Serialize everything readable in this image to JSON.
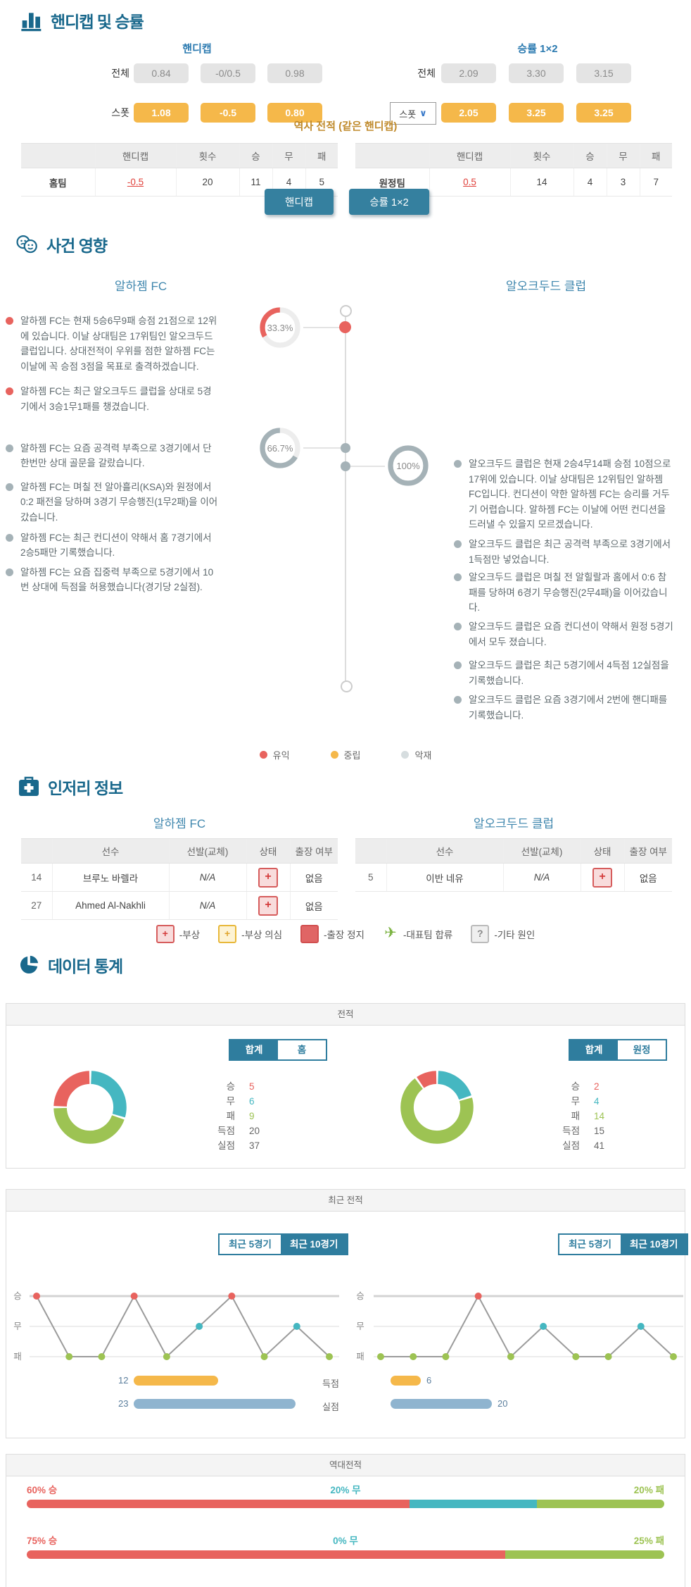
{
  "colors": {
    "red": "#e8635e",
    "teal": "#45b7c1",
    "green": "#9dc353",
    "orange": "#f5b84a",
    "blue": "#8fb4cf",
    "btnTeal": "#35809f",
    "headBlue": "#19688c",
    "dotGray": "#a5b2b7",
    "legendGray": "#d6dddf",
    "linkRed": "#e0403a"
  },
  "section1": {
    "title": "핸디캡 및 승률",
    "handicap": {
      "title": "핸디캡",
      "row1_label": "전체",
      "row1": [
        "0.84",
        "-0/0.5",
        "0.98"
      ],
      "row2_label": "스폿",
      "row2": [
        "1.08",
        "-0.5",
        "0.80"
      ]
    },
    "winrate": {
      "title": "승률 1×2",
      "row1_label": "전체",
      "row1": [
        "2.09",
        "3.30",
        "3.15"
      ],
      "row2_label": "스폿",
      "row2": [
        "2.05",
        "3.25",
        "3.25"
      ]
    },
    "history": {
      "title": "역사 전적 (같은 핸디캡)",
      "columns": [
        "핸디캡",
        "횟수",
        "승",
        "무",
        "패"
      ],
      "home": {
        "label": "홈팀",
        "handicap": "-0.5",
        "count": "20",
        "win": "11",
        "draw": "4",
        "loss": "5"
      },
      "away": {
        "label": "원정팀",
        "handicap": "0.5",
        "count": "14",
        "win": "4",
        "draw": "3",
        "loss": "7"
      }
    },
    "buttons": {
      "handicap": "핸디캡",
      "winrate": "승률 1×2"
    }
  },
  "section2": {
    "title": "사건 영향",
    "home_team": "알하젬 FC",
    "away_team": "알오크두드 클럽",
    "gauges": [
      {
        "label": "33.3%",
        "value": 33.3,
        "color": "red"
      },
      {
        "label": "66.7%",
        "value": 66.7,
        "color": "dotGray"
      },
      {
        "label": "100%",
        "value": 100,
        "color": "dotGray"
      }
    ],
    "home_bullets": [
      {
        "color": "red",
        "text": "알하젬 FC는 현재 5승6무9패 승점 21점으로 12위에 있습니다. 이날 상대팀은 17위팀인 알오크두드 클럽입니다. 상대전적이 우위를 점한 알하젬 FC는 이날에 꼭 승점 3점을 목표로 출격하겠습니다."
      },
      {
        "color": "red",
        "text": "알하젬 FC는 최근 알오크두드 클럽을 상대로 5경기에서 3승1무1패를 챙겼습니다."
      },
      {
        "color": "dotGray",
        "text": "알하젬 FC는 요즘 공격력 부족으로 3경기에서 단 한번만 상대 골문을 갈랐습니다."
      },
      {
        "color": "dotGray",
        "text": "알하젬 FC는 며칠 전 알아흘리(KSA)와 원정에서 0:2 패전을 당하며 3경기 무승행진(1무2패)을 이어갔습니다."
      },
      {
        "color": "dotGray",
        "text": "알하젬 FC는 최근 컨디션이 약해서 홈 7경기에서 2승5패만 기록했습니다."
      },
      {
        "color": "dotGray",
        "text": "알하젬 FC는 요즘 집중력 부족으로 5경기에서 10번 상대에 득점을 허용했습니다(경기당 2실점)."
      }
    ],
    "away_bullets": [
      {
        "color": "dotGray",
        "text": "알오크두드 클럽은 현재 2승4무14패 승점 10점으로 17위에 있습니다. 이날 상대팀은 12위팀인 알하젬 FC입니다. 컨디션이 약한 알하젬 FC는 승리를 거두기 어렵습니다. 알하젬 FC는 이날에 어떤 컨디션을 드러낼 수 있을지 모르겠습니다."
      },
      {
        "color": "dotGray",
        "text": "알오크두드 클럽은 최근 공격력 부족으로 3경기에서 1득점만 넣었습니다."
      },
      {
        "color": "dotGray",
        "text": "알오크두드 클럽은 며칠 전 알힐랄과 홈에서 0:6 참패를 당하며 6경기 무승행진(2무4패)을 이어갔습니다."
      },
      {
        "color": "dotGray",
        "text": "알오크두드 클럽은 요즘 컨디션이 약해서 원정 5경기에서 모두 졌습니다."
      },
      {
        "color": "dotGray",
        "text": "알오크두드 클럽은 최근 5경기에서 4득점 12실점을 기록했습니다."
      },
      {
        "color": "dotGray",
        "text": "알오크두드 클럽은 요즘 3경기에서 2번에 핸디패를 기록했습니다."
      }
    ],
    "legend": [
      {
        "label": "유익",
        "color": "red"
      },
      {
        "label": "중립",
        "color": "orange"
      },
      {
        "label": "악재",
        "color": "legendGray"
      }
    ]
  },
  "section3": {
    "title": "인저리 정보",
    "home_team": "알하젬 FC",
    "away_team": "알오크두드 클럽",
    "columns": [
      "선수",
      "선발(교체)",
      "상태",
      "출장 여부"
    ],
    "home_rows": [
      {
        "no": "14",
        "name": "브루노 바렐라",
        "start": "N/A",
        "absent": "없음"
      },
      {
        "no": "27",
        "name": "Ahmed Al-Nakhli",
        "start": "N/A",
        "absent": "없음"
      }
    ],
    "away_rows": [
      {
        "no": "5",
        "name": "이반 네유",
        "start": "N/A",
        "absent": "없음"
      }
    ],
    "legend": [
      {
        "label": "-부상"
      },
      {
        "label": "-부상 의심"
      },
      {
        "label": "-출장 정지"
      },
      {
        "label": "-대표팀 합류"
      },
      {
        "label": "-기타 원인"
      }
    ],
    "etc_mark": "?"
  },
  "section4": {
    "title": "데이터 통계",
    "record": {
      "panel_title": "전적",
      "row_labels": [
        "승",
        "무",
        "패",
        "득점",
        "실점"
      ],
      "home_tabs": [
        "합계",
        "홈"
      ],
      "away_tabs": [
        "합계",
        "원정"
      ],
      "home": {
        "win": 5,
        "draw": 6,
        "loss": 9,
        "gf": 20,
        "ga": 37
      },
      "away": {
        "win": 2,
        "draw": 4,
        "loss": 14,
        "gf": 15,
        "ga": 41
      },
      "home_donut": {
        "values": [
          6,
          9,
          5
        ],
        "colors": [
          "teal",
          "green",
          "red"
        ]
      },
      "away_donut": {
        "values": [
          4,
          14,
          2
        ],
        "colors": [
          "teal",
          "green",
          "red"
        ]
      }
    },
    "recent": {
      "panel_title": "최근 전적",
      "tabs": [
        "최근 5경기",
        "최근 10경기"
      ],
      "axis": [
        "승",
        "무",
        "패"
      ],
      "home_chart": {
        "results": [
          "승",
          "패",
          "패",
          "승",
          "패",
          "무",
          "승",
          "패",
          "무",
          "패"
        ],
        "dot_colors": {
          "승": "red",
          "무": "teal",
          "패": "green"
        }
      },
      "away_chart": {
        "results": [
          "패",
          "패",
          "패",
          "승",
          "패",
          "무",
          "패",
          "패",
          "무",
          "패"
        ],
        "dot_colors": {
          "승": "red",
          "무": "teal",
          "패": "green"
        }
      },
      "goals_label": "득점",
      "conceded_label": "실점",
      "home_goals": 12,
      "home_conceded": 23,
      "away_goals": 6,
      "away_conceded": 20
    },
    "h2h": {
      "panel_title": "역대전적",
      "rows": [
        {
          "win_label": "60% 승",
          "draw_label": "20% 무",
          "loss_label": "20% 패",
          "segments": [
            {
              "pct": 60,
              "color": "red"
            },
            {
              "pct": 20,
              "color": "teal"
            },
            {
              "pct": 20,
              "color": "green"
            }
          ]
        },
        {
          "win_label": "75% 승",
          "draw_label": "0% 무",
          "loss_label": "25% 패",
          "segments": [
            {
              "pct": 75,
              "color": "red"
            },
            {
              "pct": 0,
              "color": "teal"
            },
            {
              "pct": 25,
              "color": "green"
            }
          ]
        }
      ]
    }
  },
  "chart_data": [
    {
      "type": "pie",
      "title": "전적 - 알하젬 FC (합계)",
      "labels": [
        "무",
        "패",
        "승"
      ],
      "values": [
        6,
        9,
        5
      ],
      "extra": {
        "득점": 20,
        "실점": 37
      },
      "legend_position": "right"
    },
    {
      "type": "pie",
      "title": "전적 - 알오크두드 클럽 (합계)",
      "labels": [
        "무",
        "패",
        "승"
      ],
      "values": [
        4,
        14,
        2
      ],
      "extra": {
        "득점": 15,
        "실점": 41
      },
      "legend_position": "right"
    },
    {
      "type": "line",
      "title": "최근 전적 - 알하젬 FC (최근 10경기)",
      "x": [
        1,
        2,
        3,
        4,
        5,
        6,
        7,
        8,
        9,
        10
      ],
      "values": [
        "승",
        "패",
        "패",
        "승",
        "패",
        "무",
        "승",
        "패",
        "무",
        "패"
      ],
      "ylabels": [
        "승",
        "무",
        "패"
      ],
      "grid": true
    },
    {
      "type": "line",
      "title": "최근 전적 - 알오크두드 클럽 (최근 10경기)",
      "x": [
        1,
        2,
        3,
        4,
        5,
        6,
        7,
        8,
        9,
        10
      ],
      "values": [
        "패",
        "패",
        "패",
        "승",
        "패",
        "무",
        "패",
        "패",
        "무",
        "패"
      ],
      "ylabels": [
        "승",
        "무",
        "패"
      ],
      "grid": true
    },
    {
      "type": "bar",
      "title": "최근 득점/실점",
      "categories": [
        "득점",
        "실점"
      ],
      "series": [
        {
          "name": "알하젬 FC",
          "values": [
            12,
            23
          ]
        },
        {
          "name": "알오크두드 클럽",
          "values": [
            6,
            20
          ]
        }
      ]
    },
    {
      "type": "bar",
      "title": "역대전적 (%)",
      "categories": [
        "승",
        "무",
        "패"
      ],
      "series": [
        {
          "name": "row1",
          "values": [
            60,
            20,
            20
          ]
        },
        {
          "name": "row2",
          "values": [
            75,
            0,
            25
          ]
        }
      ]
    },
    {
      "type": "pie",
      "title": "사건 영향 게이지",
      "labels": [
        "유익",
        "중립/악재",
        "악재"
      ],
      "values": [
        33.3,
        66.7,
        100
      ]
    }
  ]
}
